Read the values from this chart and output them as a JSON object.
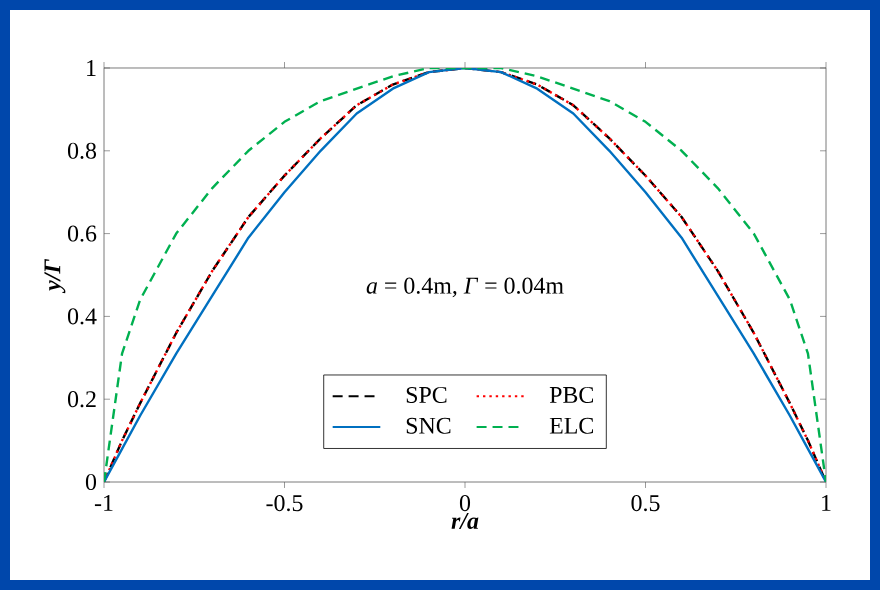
{
  "chart_data": {
    "type": "line",
    "xlabel": "r/a",
    "ylabel": "y/Γ",
    "annotations": [
      "*a* = 0.4m, *Γ* = 0.04m"
    ],
    "x": [
      -1,
      -0.95,
      -0.9,
      -0.8,
      -0.7,
      -0.6,
      -0.5,
      -0.4,
      -0.3,
      -0.2,
      -0.1,
      0,
      0.1,
      0.2,
      0.3,
      0.4,
      0.5,
      0.6,
      0.7,
      0.8,
      0.9,
      0.95,
      1
    ],
    "xlim": [
      -1,
      1
    ],
    "ylim": [
      0,
      1
    ],
    "xticks": [
      -1,
      -0.5,
      0,
      0.5,
      1
    ],
    "yticks": [
      0,
      0.2,
      0.4,
      0.6,
      0.8,
      1
    ],
    "legend": "bottom",
    "series": [
      {
        "name": "SPC",
        "color": "#000000",
        "line_style": "dashed",
        "values": [
          0,
          0.1,
          0.19,
          0.36,
          0.51,
          0.64,
          0.74,
          0.83,
          0.91,
          0.96,
          0.99,
          1,
          0.99,
          0.96,
          0.91,
          0.83,
          0.74,
          0.64,
          0.51,
          0.36,
          0.19,
          0.1,
          0
        ]
      },
      {
        "name": "PBC",
        "color": "#ff0000",
        "line_style": "dotted",
        "values": [
          0,
          0.1,
          0.19,
          0.36,
          0.51,
          0.64,
          0.74,
          0.83,
          0.91,
          0.96,
          0.99,
          1,
          0.99,
          0.96,
          0.91,
          0.83,
          0.74,
          0.64,
          0.51,
          0.36,
          0.19,
          0.1,
          0
        ]
      },
      {
        "name": "SNC",
        "color": "#0070c0",
        "line_style": "solid",
        "values": [
          0,
          0.08,
          0.16,
          0.31,
          0.45,
          0.59,
          0.7,
          0.8,
          0.89,
          0.95,
          0.99,
          1,
          0.99,
          0.95,
          0.89,
          0.8,
          0.7,
          0.59,
          0.45,
          0.31,
          0.16,
          0.08,
          0
        ]
      },
      {
        "name": "ELC",
        "color": "#00b050",
        "line_style": "dashed",
        "values": [
          0,
          0.31,
          0.44,
          0.6,
          0.71,
          0.8,
          0.87,
          0.92,
          0.95,
          0.98,
          1,
          1,
          1,
          0.98,
          0.95,
          0.92,
          0.87,
          0.8,
          0.71,
          0.6,
          0.44,
          0.31,
          0
        ]
      }
    ]
  }
}
